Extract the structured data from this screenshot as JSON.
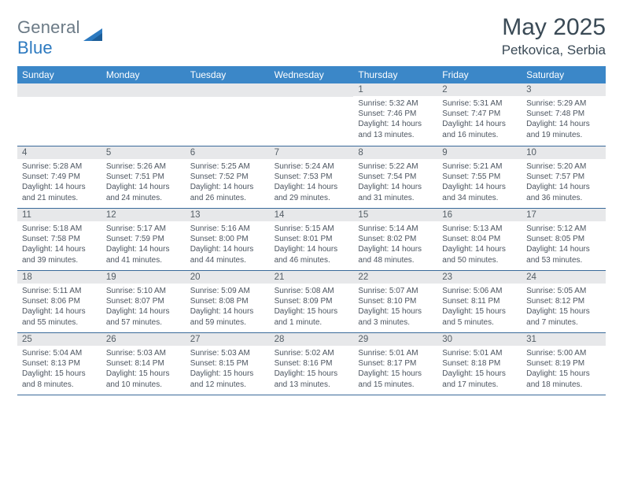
{
  "logo": {
    "word1": "General",
    "word2": "Blue"
  },
  "title": "May 2025",
  "location": "Petkovica, Serbia",
  "colors": {
    "header_bg": "#3b87c8",
    "header_text": "#ffffff",
    "date_bg": "#e7e8ea",
    "text": "#4c5560",
    "rule": "#3a6a9a",
    "logo_gray": "#6b7a86",
    "logo_blue": "#2d7ac0"
  },
  "typography": {
    "title_fontsize": 30,
    "location_fontsize": 17,
    "dayheader_fontsize": 12,
    "date_fontsize": 11.5,
    "detail_fontsize": 10
  },
  "day_names": [
    "Sunday",
    "Monday",
    "Tuesday",
    "Wednesday",
    "Thursday",
    "Friday",
    "Saturday"
  ],
  "weeks": [
    [
      null,
      null,
      null,
      null,
      {
        "date": "1",
        "sunrise": "5:32 AM",
        "sunset": "7:46 PM",
        "daylight": "14 hours and 13 minutes."
      },
      {
        "date": "2",
        "sunrise": "5:31 AM",
        "sunset": "7:47 PM",
        "daylight": "14 hours and 16 minutes."
      },
      {
        "date": "3",
        "sunrise": "5:29 AM",
        "sunset": "7:48 PM",
        "daylight": "14 hours and 19 minutes."
      }
    ],
    [
      {
        "date": "4",
        "sunrise": "5:28 AM",
        "sunset": "7:49 PM",
        "daylight": "14 hours and 21 minutes."
      },
      {
        "date": "5",
        "sunrise": "5:26 AM",
        "sunset": "7:51 PM",
        "daylight": "14 hours and 24 minutes."
      },
      {
        "date": "6",
        "sunrise": "5:25 AM",
        "sunset": "7:52 PM",
        "daylight": "14 hours and 26 minutes."
      },
      {
        "date": "7",
        "sunrise": "5:24 AM",
        "sunset": "7:53 PM",
        "daylight": "14 hours and 29 minutes."
      },
      {
        "date": "8",
        "sunrise": "5:22 AM",
        "sunset": "7:54 PM",
        "daylight": "14 hours and 31 minutes."
      },
      {
        "date": "9",
        "sunrise": "5:21 AM",
        "sunset": "7:55 PM",
        "daylight": "14 hours and 34 minutes."
      },
      {
        "date": "10",
        "sunrise": "5:20 AM",
        "sunset": "7:57 PM",
        "daylight": "14 hours and 36 minutes."
      }
    ],
    [
      {
        "date": "11",
        "sunrise": "5:18 AM",
        "sunset": "7:58 PM",
        "daylight": "14 hours and 39 minutes."
      },
      {
        "date": "12",
        "sunrise": "5:17 AM",
        "sunset": "7:59 PM",
        "daylight": "14 hours and 41 minutes."
      },
      {
        "date": "13",
        "sunrise": "5:16 AM",
        "sunset": "8:00 PM",
        "daylight": "14 hours and 44 minutes."
      },
      {
        "date": "14",
        "sunrise": "5:15 AM",
        "sunset": "8:01 PM",
        "daylight": "14 hours and 46 minutes."
      },
      {
        "date": "15",
        "sunrise": "5:14 AM",
        "sunset": "8:02 PM",
        "daylight": "14 hours and 48 minutes."
      },
      {
        "date": "16",
        "sunrise": "5:13 AM",
        "sunset": "8:04 PM",
        "daylight": "14 hours and 50 minutes."
      },
      {
        "date": "17",
        "sunrise": "5:12 AM",
        "sunset": "8:05 PM",
        "daylight": "14 hours and 53 minutes."
      }
    ],
    [
      {
        "date": "18",
        "sunrise": "5:11 AM",
        "sunset": "8:06 PM",
        "daylight": "14 hours and 55 minutes."
      },
      {
        "date": "19",
        "sunrise": "5:10 AM",
        "sunset": "8:07 PM",
        "daylight": "14 hours and 57 minutes."
      },
      {
        "date": "20",
        "sunrise": "5:09 AM",
        "sunset": "8:08 PM",
        "daylight": "14 hours and 59 minutes."
      },
      {
        "date": "21",
        "sunrise": "5:08 AM",
        "sunset": "8:09 PM",
        "daylight": "15 hours and 1 minute."
      },
      {
        "date": "22",
        "sunrise": "5:07 AM",
        "sunset": "8:10 PM",
        "daylight": "15 hours and 3 minutes."
      },
      {
        "date": "23",
        "sunrise": "5:06 AM",
        "sunset": "8:11 PM",
        "daylight": "15 hours and 5 minutes."
      },
      {
        "date": "24",
        "sunrise": "5:05 AM",
        "sunset": "8:12 PM",
        "daylight": "15 hours and 7 minutes."
      }
    ],
    [
      {
        "date": "25",
        "sunrise": "5:04 AM",
        "sunset": "8:13 PM",
        "daylight": "15 hours and 8 minutes."
      },
      {
        "date": "26",
        "sunrise": "5:03 AM",
        "sunset": "8:14 PM",
        "daylight": "15 hours and 10 minutes."
      },
      {
        "date": "27",
        "sunrise": "5:03 AM",
        "sunset": "8:15 PM",
        "daylight": "15 hours and 12 minutes."
      },
      {
        "date": "28",
        "sunrise": "5:02 AM",
        "sunset": "8:16 PM",
        "daylight": "15 hours and 13 minutes."
      },
      {
        "date": "29",
        "sunrise": "5:01 AM",
        "sunset": "8:17 PM",
        "daylight": "15 hours and 15 minutes."
      },
      {
        "date": "30",
        "sunrise": "5:01 AM",
        "sunset": "8:18 PM",
        "daylight": "15 hours and 17 minutes."
      },
      {
        "date": "31",
        "sunrise": "5:00 AM",
        "sunset": "8:19 PM",
        "daylight": "15 hours and 18 minutes."
      }
    ]
  ],
  "labels": {
    "sunrise": "Sunrise:",
    "sunset": "Sunset:",
    "daylight": "Daylight:"
  }
}
